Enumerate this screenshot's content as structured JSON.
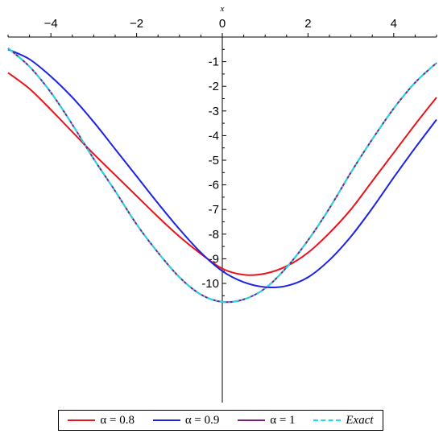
{
  "chart_data": {
    "type": "line",
    "title": "",
    "xlabel": "x",
    "ylabel": "",
    "xlim": [
      -5,
      5
    ],
    "ylim": [
      -10.8,
      0
    ],
    "x_ticks": [
      -4,
      -2,
      0,
      2,
      4
    ],
    "x_tick_labels": [
      "−4",
      "−2",
      "0",
      "2",
      "4"
    ],
    "y_ticks": [
      -1,
      -2,
      -3,
      -4,
      -5,
      -6,
      -7,
      -8,
      -9,
      -10
    ],
    "y_tick_labels": [
      "-1",
      "-2",
      "-3",
      "-4",
      "-5",
      "-6",
      "-7",
      "-8",
      "-9",
      "-10"
    ],
    "grid": false,
    "legend_position": "bottom",
    "x": [
      -5,
      -4.5,
      -4,
      -3.5,
      -3,
      -2.5,
      -2,
      -1.5,
      -1,
      -0.5,
      0,
      0.5,
      1,
      1.5,
      2,
      2.5,
      3,
      3.5,
      4,
      4.5,
      5
    ],
    "series": [
      {
        "name": "α = 0.8",
        "color": "#e8141b",
        "dash": "solid",
        "values": [
          -1.45,
          -2.1,
          -2.95,
          -3.85,
          -4.75,
          -5.6,
          -6.45,
          -7.3,
          -8.1,
          -8.8,
          -9.4,
          -9.65,
          -9.6,
          -9.3,
          -8.75,
          -7.95,
          -7.0,
          -5.85,
          -4.7,
          -3.55,
          -2.45
        ]
      },
      {
        "name": "α = 0.9",
        "color": "#1c22e3",
        "dash": "solid",
        "values": [
          -0.5,
          -0.9,
          -1.6,
          -2.45,
          -3.45,
          -4.55,
          -5.65,
          -6.75,
          -7.8,
          -8.75,
          -9.5,
          -9.95,
          -10.15,
          -10.1,
          -9.75,
          -9.05,
          -8.1,
          -6.95,
          -5.7,
          -4.5,
          -3.35
        ]
      },
      {
        "name": "α = 1",
        "color": "#7a1f80",
        "dash": "solid",
        "values": [
          -0.45,
          -1.2,
          -2.25,
          -3.55,
          -4.95,
          -6.25,
          -7.6,
          -8.75,
          -9.75,
          -10.45,
          -10.75,
          -10.65,
          -10.2,
          -9.35,
          -8.25,
          -6.95,
          -5.5,
          -4.15,
          -2.9,
          -1.85,
          -1.05
        ]
      },
      {
        "name": "Exact",
        "color": "#23d7e6",
        "dash": "dashdot",
        "values": [
          -0.45,
          -1.2,
          -2.25,
          -3.55,
          -4.95,
          -6.25,
          -7.6,
          -8.75,
          -9.75,
          -10.45,
          -10.75,
          -10.65,
          -10.2,
          -9.35,
          -8.25,
          -6.95,
          -5.5,
          -4.15,
          -2.9,
          -1.85,
          -1.05
        ]
      }
    ]
  }
}
